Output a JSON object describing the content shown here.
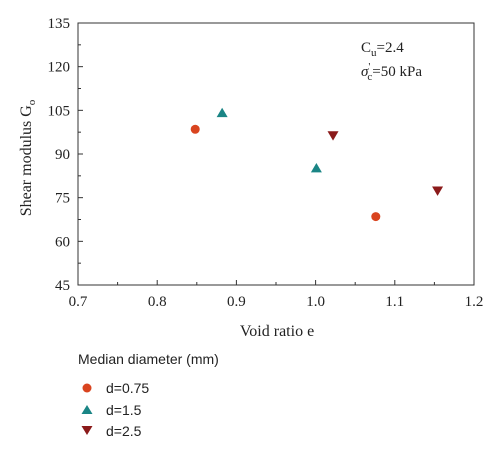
{
  "chart_data": {
    "type": "scatter",
    "xlabel": "Void ratio e",
    "ylabel_main": "Shear modulus G",
    "ylabel_sub": "o",
    "xlim": [
      0.7,
      1.2
    ],
    "ylim": [
      45,
      135
    ],
    "xticks": [
      "0.7",
      "0.8",
      "0.9",
      "1.0",
      "1.1",
      "1.2"
    ],
    "yticks": [
      "45",
      "60",
      "75",
      "90",
      "105",
      "120",
      "135"
    ],
    "xtick_values": [
      0.7,
      0.8,
      0.9,
      1.0,
      1.1,
      1.2
    ],
    "ytick_values": [
      45,
      60,
      75,
      90,
      105,
      120,
      135
    ],
    "grid": false,
    "annotations": {
      "cu_main": "C",
      "cu_sub": "u",
      "cu_value": "=2.4",
      "sigma_main": "σ",
      "sigma_prime": "'",
      "sigma_sub": "c",
      "sigma_value": "=50 kPa"
    },
    "legend": {
      "title": "Median diameter (mm)",
      "placement": "bottom-left, below plot"
    },
    "series": [
      {
        "name": "d=0.75",
        "marker": "circle",
        "color": "#d9441f",
        "points": [
          {
            "x": 0.848,
            "y": 98.5
          },
          {
            "x": 1.076,
            "y": 68.5
          }
        ]
      },
      {
        "name": "d=1.5",
        "marker": "triangle-up",
        "color": "#1a8585",
        "points": [
          {
            "x": 0.882,
            "y": 104.0
          },
          {
            "x": 1.001,
            "y": 85.0
          }
        ]
      },
      {
        "name": "d=2.5",
        "marker": "triangle-down",
        "color": "#8b1a1a",
        "points": [
          {
            "x": 1.022,
            "y": 96.5
          },
          {
            "x": 1.154,
            "y": 77.5
          }
        ]
      }
    ]
  }
}
